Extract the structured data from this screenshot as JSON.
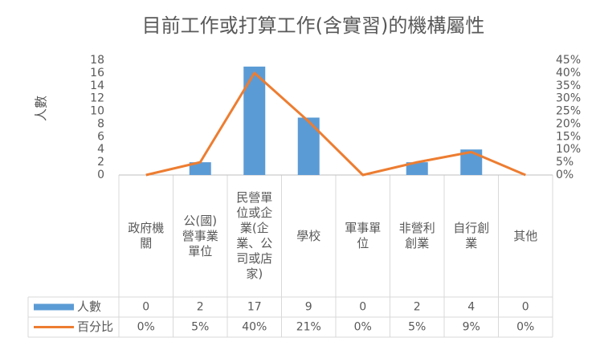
{
  "chart_data": {
    "type": "bar-line",
    "title": "目前工作或打算工作(含實習)的機構屬性",
    "y_label": "人數",
    "categories": [
      "政府機關",
      "公(國)營事業單位",
      "民營單位或企業(企業、公司或店家)",
      "學校",
      "軍事單位",
      "非營利創業",
      "自行創業",
      "其他"
    ],
    "series": [
      {
        "name": "人數",
        "type": "bar",
        "color": "#5b9bd5",
        "values": [
          0,
          2,
          17,
          9,
          0,
          2,
          4,
          0
        ]
      },
      {
        "name": "百分比",
        "type": "line",
        "axis": "y2",
        "color": "#ed7d31",
        "values": [
          0,
          5,
          40,
          21,
          0,
          5,
          9,
          0
        ],
        "value_labels": [
          "0%",
          "5%",
          "40%",
          "21%",
          "0%",
          "5%",
          "9%",
          "0%"
        ]
      }
    ],
    "ylim": [
      0,
      18
    ],
    "yticks": [
      0,
      2,
      4,
      6,
      8,
      10,
      12,
      14,
      16,
      18
    ],
    "y2lim": [
      0,
      45
    ],
    "y2ticks": [
      {
        "value": 0,
        "label": "0%"
      },
      {
        "value": 5,
        "label": "5%"
      },
      {
        "value": 10,
        "label": "10%"
      },
      {
        "value": 15,
        "label": "15%"
      },
      {
        "value": 20,
        "label": "20%"
      },
      {
        "value": 25,
        "label": "25%"
      },
      {
        "value": 30,
        "label": "30%"
      },
      {
        "value": 35,
        "label": "35%"
      },
      {
        "value": 40,
        "label": "40%"
      },
      {
        "value": 45,
        "label": "45%"
      }
    ],
    "grid": false
  }
}
